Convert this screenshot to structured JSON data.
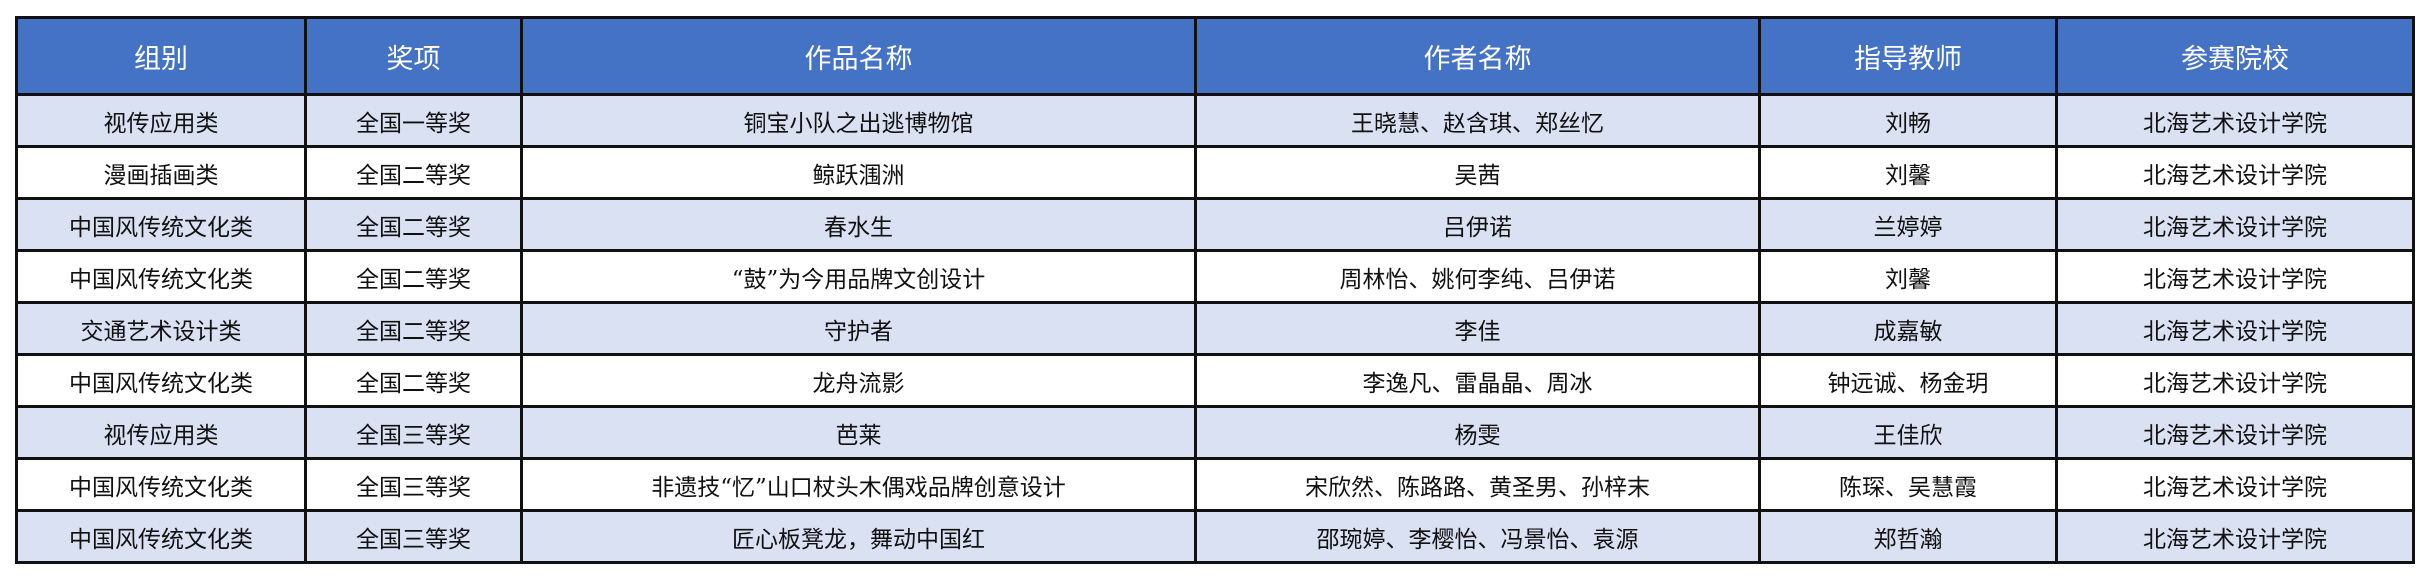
{
  "colors": {
    "header_bg": "#4472C4",
    "header_text": "#FFFFFF",
    "alt_row_bg": "#D9E1F2",
    "row_bg": "#FFFFFF",
    "border": "#111111"
  },
  "table": {
    "headers": [
      "组别",
      "奖项",
      "作品名称",
      "作者名称",
      "指导教师",
      "参赛院校"
    ],
    "rows": [
      [
        "视传应用类",
        "全国一等奖",
        "铜宝小队之出逃博物馆",
        "王晓慧、赵含琪、郑丝忆",
        "刘畅",
        "北海艺术设计学院"
      ],
      [
        "漫画插画类",
        "全国二等奖",
        "鲸跃涠洲",
        "吴茜",
        "刘馨",
        "北海艺术设计学院"
      ],
      [
        "中国风传统文化类",
        "全国二等奖",
        "春水生",
        "吕伊诺",
        "兰婷婷",
        "北海艺术设计学院"
      ],
      [
        "中国风传统文化类",
        "全国二等奖",
        "“鼓”为今用品牌文创设计",
        "周林怡、姚何李纯、吕伊诺",
        "刘馨",
        "北海艺术设计学院"
      ],
      [
        "交通艺术设计类",
        "全国二等奖",
        "守护者",
        "李佳",
        "成嘉敏",
        "北海艺术设计学院"
      ],
      [
        "中国风传统文化类",
        "全国二等奖",
        "龙舟流影",
        "李逸凡、雷晶晶、周冰",
        "钟远诚、杨金玥",
        "北海艺术设计学院"
      ],
      [
        "视传应用类",
        "全国三等奖",
        "芭莱",
        "杨雯",
        "王佳欣",
        "北海艺术设计学院"
      ],
      [
        "中国风传统文化类",
        "全国三等奖",
        "非遗技“忆”山口杖头木偶戏品牌创意设计",
        "宋欣然、陈路路、黄圣男、孙梓末",
        "陈琛、吴慧霞",
        "北海艺术设计学院"
      ],
      [
        "中国风传统文化类",
        "全国三等奖",
        "匠心板凳龙，舞动中国红",
        "邵琬婷、李樱怡、冯景怡、袁源",
        "郑哲瀚",
        "北海艺术设计学院"
      ]
    ]
  }
}
